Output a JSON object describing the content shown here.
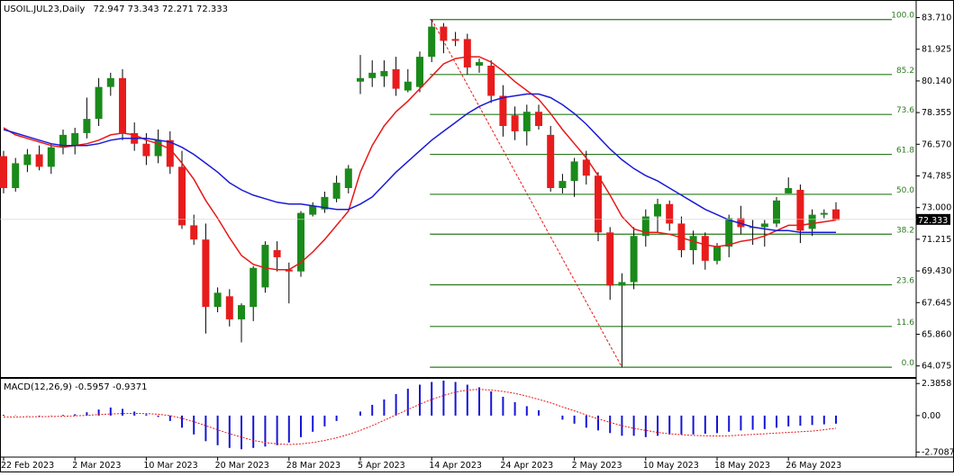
{
  "header": {
    "title": "USOIL.JUL23,Daily",
    "ohlc": "72.947 73.343 72.271 72.333"
  },
  "chart_data": [
    {
      "type": "candlestick",
      "symbol": "USOIL.JUL23",
      "timeframe": "Daily",
      "ylim": [
        63.5,
        84.6
      ],
      "y_ticks": [
        "83.710",
        "81.925",
        "80.140",
        "78.355",
        "76.570",
        "74.785",
        "73.000",
        "71.215",
        "69.430",
        "67.645",
        "65.860",
        "64.075"
      ],
      "y_tick_values": [
        83.71,
        81.925,
        80.14,
        78.355,
        76.57,
        74.785,
        73.0,
        71.215,
        69.43,
        67.645,
        65.86,
        64.075
      ],
      "current_price": "72.333",
      "current_price_value": 72.333,
      "candles": [
        {
          "o": 75.9,
          "h": 76.2,
          "l": 73.8,
          "c": 74.1
        },
        {
          "o": 74.1,
          "h": 75.8,
          "l": 73.9,
          "c": 75.5
        },
        {
          "o": 75.4,
          "h": 76.3,
          "l": 75.0,
          "c": 76.0
        },
        {
          "o": 76.0,
          "h": 76.5,
          "l": 75.1,
          "c": 75.3
        },
        {
          "o": 75.3,
          "h": 76.6,
          "l": 74.9,
          "c": 76.4
        },
        {
          "o": 76.4,
          "h": 77.4,
          "l": 76.0,
          "c": 77.1
        },
        {
          "o": 76.5,
          "h": 77.5,
          "l": 76.0,
          "c": 77.2
        },
        {
          "o": 77.2,
          "h": 79.2,
          "l": 76.9,
          "c": 78.0
        },
        {
          "o": 78.0,
          "h": 80.3,
          "l": 77.6,
          "c": 79.8
        },
        {
          "o": 79.8,
          "h": 80.6,
          "l": 79.3,
          "c": 80.3
        },
        {
          "o": 80.3,
          "h": 80.8,
          "l": 76.8,
          "c": 77.2
        },
        {
          "o": 77.2,
          "h": 77.8,
          "l": 76.2,
          "c": 76.6
        },
        {
          "o": 76.6,
          "h": 77.2,
          "l": 75.4,
          "c": 75.9
        },
        {
          "o": 75.9,
          "h": 77.4,
          "l": 75.5,
          "c": 76.8
        },
        {
          "o": 76.8,
          "h": 77.3,
          "l": 74.9,
          "c": 75.3
        },
        {
          "o": 75.3,
          "h": 76.2,
          "l": 71.8,
          "c": 72.0
        },
        {
          "o": 72.0,
          "h": 72.6,
          "l": 70.9,
          "c": 71.2
        },
        {
          "o": 71.2,
          "h": 72.1,
          "l": 65.9,
          "c": 67.4
        },
        {
          "o": 67.4,
          "h": 68.5,
          "l": 67.1,
          "c": 68.2
        },
        {
          "o": 68.0,
          "h": 68.4,
          "l": 66.3,
          "c": 66.7
        },
        {
          "o": 66.7,
          "h": 67.6,
          "l": 65.4,
          "c": 67.5
        },
        {
          "o": 67.4,
          "h": 69.7,
          "l": 66.6,
          "c": 69.6
        },
        {
          "o": 68.5,
          "h": 71.1,
          "l": 68.2,
          "c": 70.9
        },
        {
          "o": 70.6,
          "h": 71.1,
          "l": 69.4,
          "c": 70.2
        },
        {
          "o": 69.5,
          "h": 69.9,
          "l": 67.6,
          "c": 69.4
        },
        {
          "o": 69.4,
          "h": 72.8,
          "l": 69.1,
          "c": 72.7
        },
        {
          "o": 72.6,
          "h": 73.3,
          "l": 72.5,
          "c": 73.1
        },
        {
          "o": 72.9,
          "h": 73.9,
          "l": 72.7,
          "c": 73.6
        },
        {
          "o": 73.5,
          "h": 74.8,
          "l": 73.3,
          "c": 74.4
        },
        {
          "o": 74.1,
          "h": 75.4,
          "l": 73.8,
          "c": 75.2
        },
        {
          "o": 80.1,
          "h": 81.6,
          "l": 79.4,
          "c": 80.3
        },
        {
          "o": 80.3,
          "h": 81.3,
          "l": 79.8,
          "c": 80.6
        },
        {
          "o": 80.4,
          "h": 81.3,
          "l": 79.8,
          "c": 80.7
        },
        {
          "o": 80.8,
          "h": 81.5,
          "l": 79.3,
          "c": 79.7
        },
        {
          "o": 79.6,
          "h": 80.8,
          "l": 79.5,
          "c": 80.1
        },
        {
          "o": 79.8,
          "h": 81.8,
          "l": 79.5,
          "c": 81.5
        },
        {
          "o": 81.5,
          "h": 83.6,
          "l": 81.2,
          "c": 83.2
        },
        {
          "o": 83.2,
          "h": 83.4,
          "l": 81.7,
          "c": 82.4
        },
        {
          "o": 82.5,
          "h": 82.9,
          "l": 82.1,
          "c": 82.4
        },
        {
          "o": 82.5,
          "h": 82.8,
          "l": 80.5,
          "c": 80.9
        },
        {
          "o": 81.0,
          "h": 81.4,
          "l": 80.6,
          "c": 81.2
        },
        {
          "o": 81.0,
          "h": 81.3,
          "l": 78.9,
          "c": 79.3
        },
        {
          "o": 79.3,
          "h": 79.9,
          "l": 77.0,
          "c": 77.6
        },
        {
          "o": 78.2,
          "h": 78.7,
          "l": 76.8,
          "c": 77.3
        },
        {
          "o": 77.3,
          "h": 78.8,
          "l": 76.5,
          "c": 78.4
        },
        {
          "o": 78.4,
          "h": 78.8,
          "l": 77.4,
          "c": 77.6
        },
        {
          "o": 77.1,
          "h": 77.6,
          "l": 73.9,
          "c": 74.1
        },
        {
          "o": 74.1,
          "h": 74.9,
          "l": 73.8,
          "c": 74.5
        },
        {
          "o": 74.5,
          "h": 75.8,
          "l": 73.6,
          "c": 75.6
        },
        {
          "o": 75.7,
          "h": 76.2,
          "l": 74.3,
          "c": 74.8
        },
        {
          "o": 74.8,
          "h": 75.0,
          "l": 71.1,
          "c": 71.6
        },
        {
          "o": 71.6,
          "h": 71.9,
          "l": 67.8,
          "c": 68.6
        },
        {
          "o": 68.6,
          "h": 69.3,
          "l": 64.0,
          "c": 68.8
        },
        {
          "o": 68.8,
          "h": 71.9,
          "l": 68.4,
          "c": 71.4
        },
        {
          "o": 71.4,
          "h": 72.9,
          "l": 70.8,
          "c": 72.5
        },
        {
          "o": 72.5,
          "h": 73.5,
          "l": 71.6,
          "c": 73.2
        },
        {
          "o": 73.2,
          "h": 73.4,
          "l": 71.7,
          "c": 72.1
        },
        {
          "o": 72.1,
          "h": 72.5,
          "l": 70.2,
          "c": 70.6
        },
        {
          "o": 70.6,
          "h": 71.7,
          "l": 69.8,
          "c": 71.4
        },
        {
          "o": 71.4,
          "h": 71.6,
          "l": 69.5,
          "c": 70.0
        },
        {
          "o": 70.0,
          "h": 71.0,
          "l": 69.8,
          "c": 70.8
        },
        {
          "o": 70.8,
          "h": 72.6,
          "l": 70.2,
          "c": 72.4
        },
        {
          "o": 72.4,
          "h": 73.1,
          "l": 71.5,
          "c": 71.9
        },
        {
          "o": 71.9,
          "h": 72.3,
          "l": 70.9,
          "c": 71.9
        },
        {
          "o": 71.9,
          "h": 72.3,
          "l": 70.8,
          "c": 72.1
        },
        {
          "o": 72.1,
          "h": 73.6,
          "l": 71.9,
          "c": 73.4
        },
        {
          "o": 73.8,
          "h": 74.7,
          "l": 73.8,
          "c": 74.1
        },
        {
          "o": 74.0,
          "h": 74.3,
          "l": 71.0,
          "c": 71.7
        },
        {
          "o": 71.8,
          "h": 72.9,
          "l": 71.4,
          "c": 72.6
        },
        {
          "o": 72.6,
          "h": 72.9,
          "l": 72.4,
          "c": 72.7
        },
        {
          "o": 72.9,
          "h": 73.3,
          "l": 72.3,
          "c": 72.3
        }
      ],
      "fibonacci": {
        "levels": [
          {
            "label": "100.0",
            "value": 83.6
          },
          {
            "label": "85.2",
            "value": 80.5
          },
          {
            "label": "73.6",
            "value": 78.25
          },
          {
            "label": "61.8",
            "value": 76.0
          },
          {
            "label": "50.0",
            "value": 73.75
          },
          {
            "label": "38.2",
            "value": 71.5
          },
          {
            "label": "23.6",
            "value": 68.65
          },
          {
            "label": "11.6",
            "value": 66.3
          },
          {
            "label": "0.0",
            "value": 64.0
          }
        ],
        "start_index": 36,
        "end_index": 73,
        "trend_from": {
          "index": 36,
          "value": 83.6
        },
        "trend_to": {
          "index": 52,
          "value": 64.0
        },
        "color": "#2a7a1e"
      },
      "moving_averages": [
        {
          "color": "#e81818",
          "values": [
            77.5,
            77.1,
            76.9,
            76.7,
            76.5,
            76.4,
            76.5,
            76.6,
            76.8,
            77.1,
            77.2,
            77.1,
            76.8,
            76.6,
            76.3,
            75.5,
            74.6,
            73.4,
            72.4,
            71.3,
            70.3,
            69.8,
            69.6,
            69.5,
            69.5,
            69.9,
            70.5,
            71.2,
            72.0,
            72.8,
            75.0,
            76.5,
            77.6,
            78.4,
            79.0,
            79.7,
            80.4,
            81.1,
            81.4,
            81.5,
            81.5,
            81.2,
            80.7,
            80.1,
            79.6,
            79.1,
            78.3,
            77.4,
            76.6,
            75.8,
            74.8,
            73.7,
            72.5,
            71.8,
            71.6,
            71.6,
            71.5,
            71.3,
            71.1,
            70.9,
            70.8,
            70.9,
            71.1,
            71.2,
            71.4,
            71.7,
            72.0,
            72.0,
            72.1,
            72.2,
            72.3
          ]
        },
        {
          "color": "#1a1ad8",
          "values": [
            77.4,
            77.2,
            77.0,
            76.8,
            76.6,
            76.5,
            76.5,
            76.5,
            76.6,
            76.8,
            76.9,
            76.9,
            76.9,
            76.8,
            76.7,
            76.4,
            76.0,
            75.5,
            75.0,
            74.4,
            74.0,
            73.7,
            73.5,
            73.3,
            73.2,
            73.2,
            73.1,
            73.0,
            72.9,
            72.9,
            73.2,
            73.6,
            74.3,
            75.0,
            75.6,
            76.2,
            76.8,
            77.3,
            77.8,
            78.3,
            78.7,
            79.0,
            79.2,
            79.3,
            79.4,
            79.4,
            79.2,
            78.8,
            78.3,
            77.7,
            77.0,
            76.3,
            75.7,
            75.2,
            74.8,
            74.5,
            74.1,
            73.7,
            73.3,
            72.9,
            72.6,
            72.3,
            72.1,
            71.9,
            71.8,
            71.7,
            71.7,
            71.6,
            71.6,
            71.6,
            71.6
          ]
        }
      ],
      "x_tick_labels": [
        {
          "label": "22 Feb 2023",
          "index": 0
        },
        {
          "label": "2 Mar 2023",
          "index": 6
        },
        {
          "label": "10 Mar 2023",
          "index": 12
        },
        {
          "label": "20 Mar 2023",
          "index": 18
        },
        {
          "label": "28 Mar 2023",
          "index": 24
        },
        {
          "label": "5 Apr 2023",
          "index": 30
        },
        {
          "label": "14 Apr 2023",
          "index": 36
        },
        {
          "label": "24 Apr 2023",
          "index": 42
        },
        {
          "label": "2 May 2023",
          "index": 48
        },
        {
          "label": "10 May 2023",
          "index": 54
        },
        {
          "label": "18 May 2023",
          "index": 60
        },
        {
          "label": "26 May 2023",
          "index": 66
        }
      ],
      "colors": {
        "up": "#1a8a1a",
        "down": "#e81c1c",
        "wick": "#000000"
      }
    },
    {
      "type": "bar",
      "indicator": "MACD(12,26,9)",
      "title": "MACD(12,26,9) -0.5957 -0.9371",
      "ylim": [
        -2.95,
        2.6
      ],
      "y_ticks": [
        "2.3858",
        "0.00",
        "-2.7087"
      ],
      "y_tick_values": [
        2.3858,
        0.0,
        -2.7087
      ],
      "histogram_color": "#1515d6",
      "signal_color": "#e81818",
      "histogram": [
        0.06,
        0.02,
        -0.02,
        -0.05,
        -0.02,
        0.05,
        0.1,
        0.25,
        0.45,
        0.6,
        0.5,
        0.3,
        0.1,
        -0.1,
        -0.4,
        -0.9,
        -1.4,
        -1.9,
        -2.2,
        -2.4,
        -2.5,
        -2.4,
        -2.3,
        -2.2,
        -2.0,
        -1.6,
        -1.2,
        -0.8,
        -0.4,
        0.0,
        0.3,
        0.8,
        1.2,
        1.6,
        2.0,
        2.3,
        2.5,
        2.6,
        2.5,
        2.3,
        2.1,
        1.8,
        1.4,
        1.0,
        0.7,
        0.4,
        0.0,
        -0.3,
        -0.6,
        -0.9,
        -1.1,
        -1.3,
        -1.5,
        -1.5,
        -1.6,
        -1.5,
        -1.4,
        -1.4,
        -1.4,
        -1.35,
        -1.3,
        -1.2,
        -1.1,
        -1.05,
        -1.0,
        -0.9,
        -0.8,
        -0.75,
        -0.7,
        -0.65,
        -0.6
      ],
      "signal": [
        -0.1,
        -0.1,
        -0.09,
        -0.08,
        -0.07,
        -0.05,
        -0.02,
        0.02,
        0.07,
        0.12,
        0.15,
        0.16,
        0.15,
        0.1,
        0.0,
        -0.2,
        -0.45,
        -0.75,
        -1.05,
        -1.35,
        -1.6,
        -1.85,
        -2.0,
        -2.1,
        -2.15,
        -2.1,
        -2.0,
        -1.85,
        -1.65,
        -1.4,
        -1.1,
        -0.75,
        -0.35,
        0.05,
        0.45,
        0.85,
        1.2,
        1.5,
        1.75,
        1.9,
        1.95,
        1.9,
        1.8,
        1.65,
        1.45,
        1.2,
        0.95,
        0.65,
        0.35,
        0.05,
        -0.25,
        -0.5,
        -0.75,
        -0.95,
        -1.1,
        -1.25,
        -1.35,
        -1.42,
        -1.47,
        -1.5,
        -1.52,
        -1.5,
        -1.45,
        -1.4,
        -1.35,
        -1.3,
        -1.25,
        -1.2,
        -1.15,
        -1.05,
        -0.94
      ]
    }
  ]
}
